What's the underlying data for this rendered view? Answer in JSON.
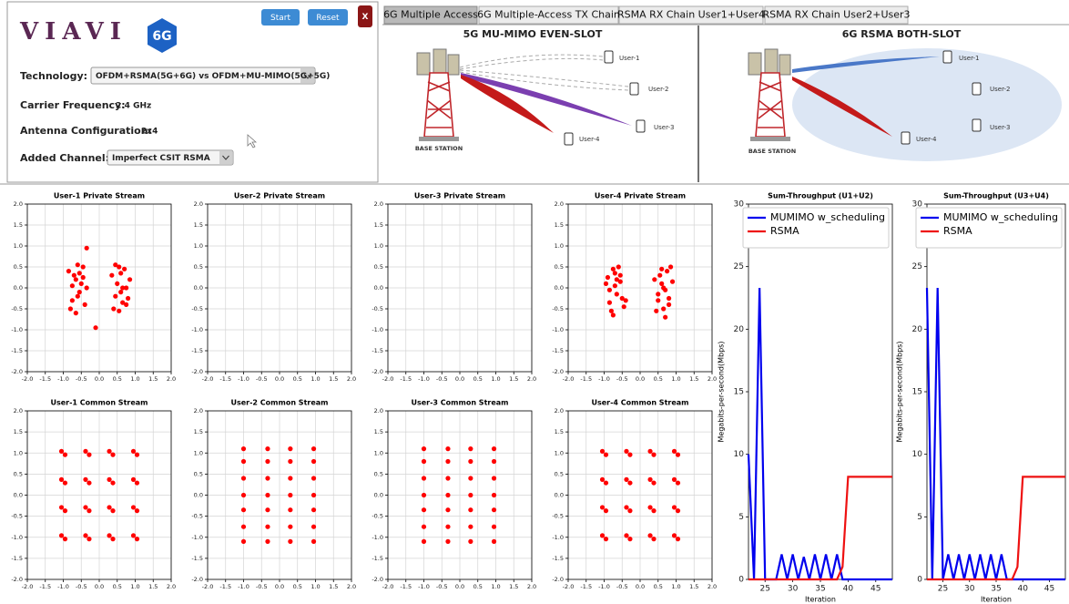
{
  "app": {
    "logo": "VIAVI",
    "badge": "6G",
    "buttons": [
      "Start",
      "Reset",
      "X"
    ],
    "fields": [
      {
        "label": "Technology:",
        "value": "OFDM+RSMA(5G+6G) vs OFDM+MU-MIMO(5G+5G)"
      },
      {
        "label": "Carrier Frequency:",
        "value": "2.4 GHz"
      },
      {
        "label": "Antenna Configuration:",
        "value": "2x4"
      },
      {
        "label": "Added Channel:",
        "value": "Imperfect CSIT RSMA"
      }
    ]
  },
  "tabs": [
    "6G Multiple Access",
    "6G Multiple-Access TX Chain",
    "RSMA RX Chain User1+User4",
    "RSMA RX Chain User2+User3"
  ],
  "diagrams": [
    {
      "title": "5G MU-MIMO EVEN-SLOT",
      "base_station": "BASE STATION",
      "users": [
        "User-1",
        "User-2",
        "User-3",
        "User-4"
      ]
    },
    {
      "title": "6G RSMA BOTH-SLOT",
      "base_station": "BASE STATION",
      "users": [
        "User-1",
        "User-2",
        "User-3",
        "User-4"
      ]
    }
  ],
  "chart_data": [
    {
      "type": "scatter",
      "title": "User-1 Private Stream",
      "color": "#ff0000",
      "grid": true,
      "x": [
        -0.85,
        -0.75,
        -0.65,
        -0.55,
        -0.45,
        -0.35,
        -0.8,
        -0.7,
        -0.6,
        -0.5,
        -0.4,
        -0.75,
        -0.6,
        -0.45,
        -0.65,
        -0.55,
        0.35,
        0.45,
        0.55,
        0.65,
        0.75,
        0.85,
        0.4,
        0.5,
        0.6,
        0.7,
        0.8,
        0.45,
        0.6,
        0.75,
        0.55,
        0.65,
        -0.1,
        -0.35
      ],
      "y": [
        0.4,
        -0.3,
        0.2,
        -0.1,
        0.5,
        0.0,
        -0.5,
        0.3,
        -0.2,
        0.1,
        -0.4,
        0.05,
        0.55,
        0.25,
        -0.6,
        0.35,
        0.3,
        -0.2,
        0.5,
        0.0,
        -0.4,
        0.2,
        -0.5,
        0.1,
        -0.1,
        0.45,
        -0.25,
        0.55,
        0.35,
        0.0,
        -0.55,
        -0.35,
        -0.95,
        0.95
      ],
      "xlim": [
        -2,
        2
      ],
      "ylim": [
        -2,
        2
      ],
      "xticks": [
        {
          "value": -2,
          "label": "-2.0"
        },
        -1.5,
        {
          "value": -1,
          "label": "-1.0"
        },
        -0.5,
        {
          "value": 0,
          "label": "0.0"
        },
        0.5,
        {
          "value": 1,
          "label": "1.0"
        },
        1.5,
        {
          "value": 2,
          "label": "2.0"
        }
      ],
      "yticks": [
        {
          "value": -2,
          "label": "-2.0"
        },
        -1.5,
        {
          "value": -1,
          "label": "-1.0"
        },
        -0.5,
        {
          "value": 0,
          "label": "0.0"
        },
        0.5,
        {
          "value": 1,
          "label": "1.0"
        },
        1.5,
        {
          "value": 2,
          "label": "2.0"
        }
      ]
    },
    {
      "type": "scatter",
      "title": "User-2 Private Stream",
      "color": "#ff0000",
      "grid": true,
      "x": [],
      "y": [],
      "xlim": [
        -2,
        2
      ],
      "ylim": [
        -2,
        2
      ],
      "xticks": [
        {
          "value": -2,
          "label": "-2.0"
        },
        -1.5,
        {
          "value": -1,
          "label": "-1.0"
        },
        -0.5,
        {
          "value": 0,
          "label": "0.0"
        },
        0.5,
        {
          "value": 1,
          "label": "1.0"
        },
        1.5,
        {
          "value": 2,
          "label": "2.0"
        }
      ],
      "yticks": [
        {
          "value": -2,
          "label": "-2.0"
        },
        -1.5,
        {
          "value": -1,
          "label": "-1.0"
        },
        -0.5,
        {
          "value": 0,
          "label": "0.0"
        },
        0.5,
        {
          "value": 1,
          "label": "1.0"
        },
        1.5,
        {
          "value": 2,
          "label": "2.0"
        }
      ]
    },
    {
      "type": "scatter",
      "title": "User-3 Private Stream",
      "color": "#ff0000",
      "grid": true,
      "x": [],
      "y": [],
      "xlim": [
        -2,
        2
      ],
      "ylim": [
        -2,
        2
      ],
      "xticks": [
        {
          "value": -2,
          "label": "-2.0"
        },
        -1.5,
        {
          "value": -1,
          "label": "-1.0"
        },
        -0.5,
        {
          "value": 0,
          "label": "0.0"
        },
        0.5,
        {
          "value": 1,
          "label": "1.0"
        },
        1.5,
        {
          "value": 2,
          "label": "2.0"
        }
      ],
      "yticks": [
        {
          "value": -2,
          "label": "-2.0"
        },
        -1.5,
        {
          "value": -1,
          "label": "-1.0"
        },
        -0.5,
        {
          "value": 0,
          "label": "0.0"
        },
        0.5,
        {
          "value": 1,
          "label": "1.0"
        },
        1.5,
        {
          "value": 2,
          "label": "2.0"
        }
      ]
    },
    {
      "type": "scatter",
      "title": "User-4 Private Stream",
      "color": "#ff0000",
      "grid": true,
      "x": [
        -0.95,
        -0.85,
        -0.75,
        -0.65,
        -0.55,
        -0.45,
        -0.9,
        -0.8,
        -0.7,
        -0.6,
        -0.5,
        -0.85,
        -0.7,
        -0.55,
        -0.75,
        -0.65,
        -0.4,
        0.4,
        0.5,
        0.6,
        0.7,
        0.8,
        0.9,
        0.45,
        0.55,
        0.65,
        0.75,
        0.85,
        0.5,
        0.65,
        0.8,
        0.6,
        0.7
      ],
      "y": [
        0.1,
        -0.35,
        0.45,
        -0.15,
        0.3,
        -0.45,
        0.25,
        -0.55,
        0.05,
        0.5,
        -0.25,
        -0.05,
        0.35,
        0.15,
        -0.65,
        0.2,
        -0.3,
        0.2,
        -0.3,
        0.45,
        -0.05,
        -0.4,
        0.15,
        -0.55,
        0.3,
        0.0,
        0.4,
        0.5,
        -0.15,
        -0.5,
        -0.25,
        0.1,
        -0.7
      ],
      "xlim": [
        -2,
        2
      ],
      "ylim": [
        -2,
        2
      ],
      "xticks": [
        {
          "value": -2,
          "label": "-2.0"
        },
        -1.5,
        {
          "value": -1,
          "label": "-1.0"
        },
        -0.5,
        {
          "value": 0,
          "label": "0.0"
        },
        0.5,
        {
          "value": 1,
          "label": "1.0"
        },
        1.5,
        {
          "value": 2,
          "label": "2.0"
        }
      ],
      "yticks": [
        {
          "value": -2,
          "label": "-2.0"
        },
        -1.5,
        {
          "value": -1,
          "label": "-1.0"
        },
        -0.5,
        {
          "value": 0,
          "label": "0.0"
        },
        0.5,
        {
          "value": 1,
          "label": "1.0"
        },
        1.5,
        {
          "value": 2,
          "label": "2.0"
        }
      ]
    },
    {
      "type": "scatter",
      "title": "User-1 Common Stream",
      "color": "#ff0000",
      "grid": true,
      "x": [
        -1.05,
        -0.95,
        -0.38,
        -0.28,
        0.28,
        0.38,
        0.95,
        1.05,
        -1.05,
        -0.95,
        -0.38,
        -0.28,
        0.28,
        0.38,
        0.95,
        1.05,
        -1.05,
        -0.95,
        -0.38,
        -0.28,
        0.28,
        0.38,
        0.95,
        1.05,
        -1.05,
        -0.95,
        -0.38,
        -0.28,
        0.28,
        0.38,
        0.95,
        1.05
      ],
      "y": [
        1.04,
        0.96,
        1.04,
        0.96,
        1.04,
        0.96,
        1.04,
        0.96,
        0.37,
        0.29,
        0.37,
        0.29,
        0.37,
        0.29,
        0.37,
        0.29,
        -0.29,
        -0.37,
        -0.29,
        -0.37,
        -0.29,
        -0.37,
        -0.29,
        -0.37,
        -0.96,
        -1.04,
        -0.96,
        -1.04,
        -0.96,
        -1.04,
        -0.96,
        -1.04
      ],
      "xlim": [
        -2,
        2
      ],
      "ylim": [
        -2,
        2
      ],
      "xticks": [
        {
          "value": -2,
          "label": "-2.0"
        },
        -1.5,
        {
          "value": -1,
          "label": "-1.0"
        },
        -0.5,
        {
          "value": 0,
          "label": "0.0"
        },
        0.5,
        {
          "value": 1,
          "label": "1.0"
        },
        1.5,
        {
          "value": 2,
          "label": "2.0"
        }
      ],
      "yticks": [
        {
          "value": -2,
          "label": "-2.0"
        },
        -1.5,
        {
          "value": -1,
          "label": "-1.0"
        },
        -0.5,
        {
          "value": 0,
          "label": "0.0"
        },
        0.5,
        {
          "value": 1,
          "label": "1.0"
        },
        1.5,
        {
          "value": 2,
          "label": "2.0"
        }
      ]
    },
    {
      "type": "scatter",
      "title": "User-2 Common Stream",
      "color": "#ff0000",
      "grid": true,
      "x": [
        -1,
        -0.33,
        0.3,
        0.95,
        -1,
        -0.33,
        0.3,
        0.95,
        -1,
        -0.33,
        0.3,
        0.95,
        -1,
        -0.33,
        0.3,
        0.95,
        -1,
        -0.33,
        0.3,
        0.95,
        -1,
        -0.33,
        0.3,
        0.95,
        -1,
        -0.33,
        0.3,
        0.95
      ],
      "y": [
        1.1,
        1.1,
        1.1,
        1.1,
        0.8,
        0.8,
        0.8,
        0.8,
        0.4,
        0.4,
        0.4,
        0.4,
        0,
        0,
        0,
        0,
        -0.35,
        -0.35,
        -0.35,
        -0.35,
        -0.75,
        -0.75,
        -0.75,
        -0.75,
        -1.1,
        -1.1,
        -1.1,
        -1.1
      ],
      "xlim": [
        -2,
        2
      ],
      "ylim": [
        -2,
        2
      ],
      "xticks": [
        {
          "value": -2,
          "label": "-2.0"
        },
        -1.5,
        {
          "value": -1,
          "label": "-1.0"
        },
        -0.5,
        {
          "value": 0,
          "label": "0.0"
        },
        0.5,
        {
          "value": 1,
          "label": "1.0"
        },
        1.5,
        {
          "value": 2,
          "label": "2.0"
        }
      ],
      "yticks": [
        {
          "value": -2,
          "label": "-2.0"
        },
        -1.5,
        {
          "value": -1,
          "label": "-1.0"
        },
        -0.5,
        {
          "value": 0,
          "label": "0.0"
        },
        0.5,
        {
          "value": 1,
          "label": "1.0"
        },
        1.5,
        {
          "value": 2,
          "label": "2.0"
        }
      ]
    },
    {
      "type": "scatter",
      "title": "User-3 Common Stream",
      "color": "#ff0000",
      "grid": true,
      "x": [
        -1,
        -0.33,
        0.3,
        0.95,
        -1,
        -0.33,
        0.3,
        0.95,
        -1,
        -0.33,
        0.3,
        0.95,
        -1,
        -0.33,
        0.3,
        0.95,
        -1,
        -0.33,
        0.3,
        0.95,
        -1,
        -0.33,
        0.3,
        0.95,
        -1,
        -0.33,
        0.3,
        0.95
      ],
      "y": [
        1.1,
        1.1,
        1.1,
        1.1,
        0.8,
        0.8,
        0.8,
        0.8,
        0.4,
        0.4,
        0.4,
        0.4,
        0,
        0,
        0,
        0,
        -0.35,
        -0.35,
        -0.35,
        -0.35,
        -0.75,
        -0.75,
        -0.75,
        -0.75,
        -1.1,
        -1.1,
        -1.1,
        -1.1
      ],
      "xlim": [
        -2,
        2
      ],
      "ylim": [
        -2,
        2
      ],
      "xticks": [
        {
          "value": -2,
          "label": "-2.0"
        },
        -1.5,
        {
          "value": -1,
          "label": "-1.0"
        },
        -0.5,
        {
          "value": 0,
          "label": "0.0"
        },
        0.5,
        {
          "value": 1,
          "label": "1.0"
        },
        1.5,
        {
          "value": 2,
          "label": "2.0"
        }
      ],
      "yticks": [
        {
          "value": -2,
          "label": "-2.0"
        },
        -1.5,
        {
          "value": -1,
          "label": "-1.0"
        },
        -0.5,
        {
          "value": 0,
          "label": "0.0"
        },
        0.5,
        {
          "value": 1,
          "label": "1.0"
        },
        1.5,
        {
          "value": 2,
          "label": "2.0"
        }
      ]
    },
    {
      "type": "scatter",
      "title": "User-4 Common Stream",
      "color": "#ff0000",
      "grid": true,
      "x": [
        -1.05,
        -0.95,
        -0.38,
        -0.28,
        0.28,
        0.38,
        0.95,
        1.05,
        -1.05,
        -0.95,
        -0.38,
        -0.28,
        0.28,
        0.38,
        0.95,
        1.05,
        -1.05,
        -0.95,
        -0.38,
        -0.28,
        0.28,
        0.38,
        0.95,
        1.05,
        -1.05,
        -0.95,
        -0.38,
        -0.28,
        0.28,
        0.38,
        0.95,
        1.05
      ],
      "y": [
        1.04,
        0.96,
        1.04,
        0.96,
        1.04,
        0.96,
        1.04,
        0.96,
        0.37,
        0.29,
        0.37,
        0.29,
        0.37,
        0.29,
        0.37,
        0.29,
        -0.29,
        -0.37,
        -0.29,
        -0.37,
        -0.29,
        -0.37,
        -0.29,
        -0.37,
        -0.96,
        -1.04,
        -0.96,
        -1.04,
        -0.96,
        -1.04,
        -0.96,
        -1.04
      ],
      "xlim": [
        -2,
        2
      ],
      "ylim": [
        -2,
        2
      ],
      "xticks": [
        {
          "value": -2,
          "label": "-2.0"
        },
        -1.5,
        {
          "value": -1,
          "label": "-1.0"
        },
        -0.5,
        {
          "value": 0,
          "label": "0.0"
        },
        0.5,
        {
          "value": 1,
          "label": "1.0"
        },
        1.5,
        {
          "value": 2,
          "label": "2.0"
        }
      ],
      "yticks": [
        {
          "value": -2,
          "label": "-2.0"
        },
        -1.5,
        {
          "value": -1,
          "label": "-1.0"
        },
        -0.5,
        {
          "value": 0,
          "label": "0.0"
        },
        0.5,
        {
          "value": 1,
          "label": "1.0"
        },
        1.5,
        {
          "value": 2,
          "label": "2.0"
        }
      ]
    },
    {
      "type": "line",
      "title": "Sum-Throughput (U1+U2)",
      "xlabel": "Iteration",
      "ylabel": "Megabits-per-second(Mbps)",
      "grid": false,
      "legend": "upper right",
      "x": [
        22,
        23,
        24,
        25,
        26,
        27,
        28,
        29,
        30,
        31,
        32,
        33,
        34,
        35,
        36,
        37,
        38,
        39,
        40,
        41,
        42,
        43,
        44,
        45,
        46,
        47,
        48
      ],
      "series": [
        {
          "name": "MUMIMO w_scheduling",
          "color": "#0000ee",
          "values": [
            10,
            0,
            23.3,
            0,
            0,
            0,
            2,
            0,
            2,
            0,
            1.8,
            0,
            2,
            0,
            2,
            0,
            2,
            0,
            0,
            0,
            0,
            0,
            0,
            0,
            0,
            0,
            0
          ]
        },
        {
          "name": "RSMA",
          "color": "#ee1111",
          "values": [
            0,
            0,
            0,
            0,
            0,
            0,
            0,
            0,
            0,
            0,
            0,
            0,
            0,
            0,
            0,
            0,
            0,
            1,
            8.2,
            8.2,
            8.2,
            8.2,
            8.2,
            8.2,
            8.2,
            8.2,
            8.2
          ]
        }
      ],
      "xlim": [
        22,
        48
      ],
      "ylim": [
        0,
        30
      ],
      "xticks": [
        25,
        30,
        35,
        40,
        45
      ],
      "yticks": [
        0,
        5,
        10,
        15,
        20,
        25,
        30
      ]
    },
    {
      "type": "line",
      "title": "Sum-Throughput (U3+U4)",
      "xlabel": "Iteration",
      "ylabel": "Megabits-per-second(Mbps)",
      "grid": false,
      "legend": "upper right",
      "x": [
        22,
        23,
        24,
        25,
        26,
        27,
        28,
        29,
        30,
        31,
        32,
        33,
        34,
        35,
        36,
        37,
        38,
        39,
        40,
        41,
        42,
        43,
        44,
        45,
        46,
        47,
        48
      ],
      "series": [
        {
          "name": "MUMIMO w_scheduling",
          "color": "#0000ee",
          "values": [
            23.3,
            0,
            23.3,
            0,
            2,
            0,
            2,
            0,
            2,
            0,
            2,
            0,
            2,
            0,
            2,
            0,
            0,
            0,
            0,
            0,
            0,
            0,
            0,
            0,
            0,
            0,
            0
          ]
        },
        {
          "name": "RSMA",
          "color": "#ee1111",
          "values": [
            0,
            0,
            0,
            0,
            0,
            0,
            0,
            0,
            0,
            0,
            0,
            0,
            0,
            0,
            0,
            0,
            0,
            1,
            8.2,
            8.2,
            8.2,
            8.2,
            8.2,
            8.2,
            8.2,
            8.2,
            8.2
          ]
        }
      ],
      "xlim": [
        22,
        48
      ],
      "ylim": [
        0,
        30
      ],
      "xticks": [
        25,
        30,
        35,
        40,
        45
      ],
      "yticks": [
        0,
        5,
        10,
        15,
        20,
        25,
        30
      ]
    }
  ]
}
